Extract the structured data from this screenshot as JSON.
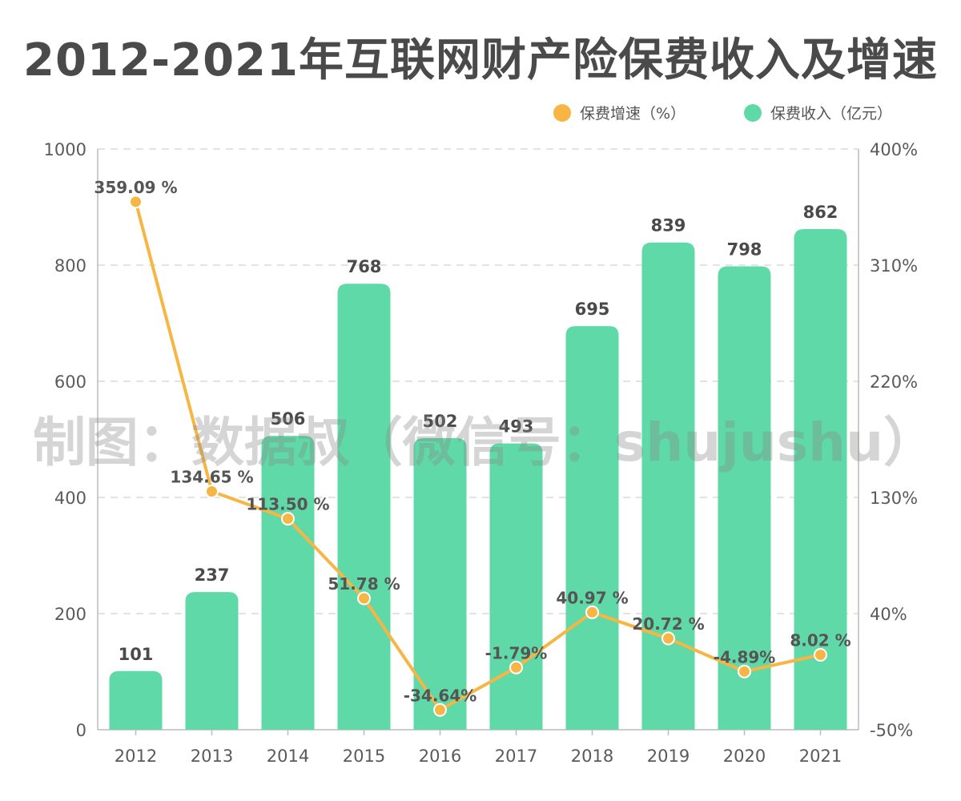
{
  "title": "2012-2021年互联网财产险保费收入及增速",
  "watermark": "制图：数据叔（微信号：shujushu）",
  "colors": {
    "bar": "#5fd9a8",
    "line": "#f7b544",
    "text": "#4a4a4a",
    "grid": "#e3e3e3",
    "axis": "#bbbbbb"
  },
  "chart_data": {
    "type": "bar",
    "categories": [
      "2012",
      "2013",
      "2014",
      "2015",
      "2016",
      "2017",
      "2018",
      "2019",
      "2020",
      "2021"
    ],
    "series": [
      {
        "name": "保费收入（亿元）",
        "type": "bar",
        "axis": "left",
        "values": [
          101,
          237,
          506,
          768,
          502,
          493,
          695,
          839,
          798,
          862
        ],
        "labels": [
          "101",
          "237",
          "506",
          "768",
          "502",
          "493",
          "695",
          "839",
          "798",
          "862"
        ]
      },
      {
        "name": "保费增速（%）",
        "type": "line",
        "axis": "right",
        "values": [
          359.09,
          134.65,
          113.5,
          51.78,
          -34.64,
          -1.79,
          40.97,
          20.72,
          -4.89,
          8.02
        ],
        "labels": [
          "359.09 %",
          "134.65 %",
          "113.50 %",
          "51.78 %",
          "-34.64%",
          "-1.79%",
          "40.97 %",
          "20.72 %",
          "-4.89%",
          "8.02 %"
        ]
      }
    ],
    "y_left": {
      "ylim": [
        0,
        1000
      ],
      "ticks": [
        "0",
        "200",
        "400",
        "600",
        "800",
        "1000"
      ]
    },
    "y_right": {
      "ylim": [
        -50,
        400
      ],
      "ticks": [
        "-50%",
        "40%",
        "130%",
        "220%",
        "310%",
        "400%"
      ]
    },
    "grid": true,
    "legend_position": "top-right"
  }
}
